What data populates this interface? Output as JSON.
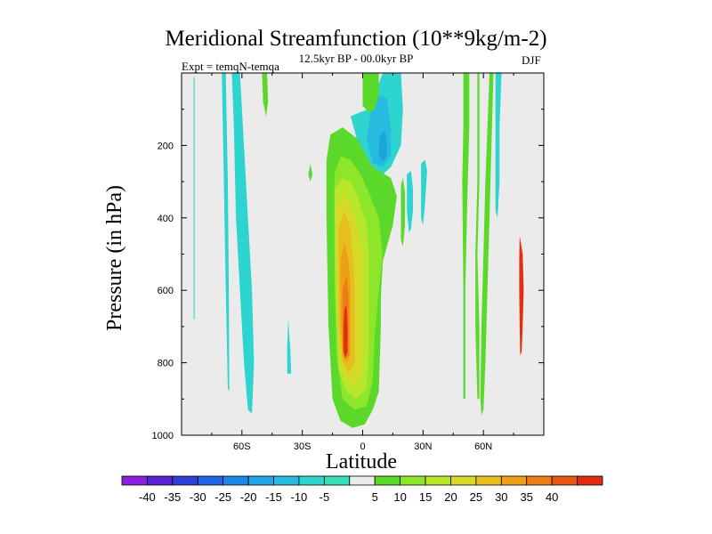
{
  "chart_data": {
    "type": "filled-contour",
    "title": "Meridional Streamfunction (10**9kg/m-2)",
    "subtitle": "12.5kyr BP - 00.0kyr BP",
    "experiment": "Expt = temqN-temqa",
    "season": "DJF",
    "xlabel": "Latitude",
    "ylabel": "Pressure (in hPa)",
    "xlim": [
      -90,
      90
    ],
    "ylim": [
      1000,
      0
    ],
    "x_ticks": [
      {
        "value": -60,
        "label": "60S"
      },
      {
        "value": -30,
        "label": "30S"
      },
      {
        "value": 0,
        "label": "0"
      },
      {
        "value": 30,
        "label": "30N"
      },
      {
        "value": 60,
        "label": "60N"
      }
    ],
    "y_ticks": [
      {
        "value": 200,
        "label": "200"
      },
      {
        "value": 400,
        "label": "400"
      },
      {
        "value": 600,
        "label": "600"
      },
      {
        "value": 800,
        "label": "800"
      },
      {
        "value": 1000,
        "label": "1000"
      }
    ],
    "colorbar": {
      "colors": [
        "#8a1fe0",
        "#5a21d6",
        "#2e40d6",
        "#1f63e6",
        "#1d87e8",
        "#22a5e8",
        "#26bbdf",
        "#2ed4cf",
        "#37deb6",
        "#ebebeb",
        "#5ad92a",
        "#8ee62a",
        "#b8e62b",
        "#d6d927",
        "#e8bd1f",
        "#eba018",
        "#eb7d14",
        "#e85713",
        "#e02b12"
      ],
      "labels": [
        "-40",
        "-35",
        "-30",
        "-25",
        "-20",
        "-15",
        "-10",
        "-5",
        "5",
        "10",
        "15",
        "20",
        "25",
        "30",
        "35",
        "40"
      ]
    },
    "regions": [
      {
        "name": "region-sh-south-band",
        "level": -5,
        "points": [
          [
            -83.5,
            12
          ],
          [
            -83.5,
            680
          ],
          [
            -84,
            680
          ],
          [
            -84,
            12
          ]
        ]
      },
      {
        "name": "region-sh-polar-tongue",
        "level": -5,
        "points": [
          [
            -70,
            0
          ],
          [
            -69,
            300
          ],
          [
            -68,
            600
          ],
          [
            -67,
            870
          ],
          [
            -66.3,
            880
          ],
          [
            -66.5,
            600
          ],
          [
            -67,
            300
          ],
          [
            -68,
            0
          ]
        ]
      },
      {
        "name": "region-sh-60s-col",
        "level": -5,
        "points": [
          [
            -65,
            0
          ],
          [
            -64,
            150
          ],
          [
            -63,
            400
          ],
          [
            -61,
            600
          ],
          [
            -59,
            800
          ],
          [
            -57,
            930
          ],
          [
            -55,
            940
          ],
          [
            -54,
            800
          ],
          [
            -55,
            600
          ],
          [
            -57,
            400
          ],
          [
            -59,
            200
          ],
          [
            -61,
            0
          ]
        ]
      },
      {
        "name": "region-sh-45s-green",
        "level": 5,
        "points": [
          [
            -50,
            0
          ],
          [
            -49.5,
            80
          ],
          [
            -48,
            120
          ],
          [
            -47,
            80
          ],
          [
            -47.5,
            0
          ]
        ]
      },
      {
        "name": "region-sh-35s-speck",
        "level": 5,
        "points": [
          [
            -27,
            280
          ],
          [
            -26,
            300
          ],
          [
            -25,
            280
          ],
          [
            -26,
            250
          ]
        ]
      },
      {
        "name": "region-sh-35s-pair",
        "level": -5,
        "points": [
          [
            -37,
            680
          ],
          [
            -36,
            760
          ],
          [
            -35.5,
            830
          ],
          [
            -37.5,
            830
          ],
          [
            -37.5,
            760
          ]
        ]
      },
      {
        "name": "region-upper-cyan",
        "level": -5,
        "points": [
          [
            10,
            0
          ],
          [
            19,
            0
          ],
          [
            20,
            100
          ],
          [
            19,
            200
          ],
          [
            14,
            260
          ],
          [
            8,
            290
          ],
          [
            3,
            285
          ],
          [
            0,
            240
          ],
          [
            -4,
            160
          ],
          [
            -6,
            120
          ],
          [
            -2,
            110
          ],
          [
            3,
            100
          ]
        ]
      },
      {
        "name": "region-upper-teal",
        "level": -10,
        "points": [
          [
            7,
            60
          ],
          [
            12,
            70
          ],
          [
            14,
            150
          ],
          [
            14,
            230
          ],
          [
            10,
            260
          ],
          [
            5,
            250
          ],
          [
            2,
            180
          ],
          [
            4,
            110
          ]
        ]
      },
      {
        "name": "region-upper-blue",
        "level": -15,
        "points": [
          [
            11,
            160
          ],
          [
            12,
            190
          ],
          [
            12,
            230
          ],
          [
            10,
            245
          ],
          [
            8,
            230
          ],
          [
            8,
            200
          ],
          [
            9,
            170
          ]
        ]
      },
      {
        "name": "region-top-green-cap",
        "level": 5,
        "points": [
          [
            0,
            0
          ],
          [
            8,
            0
          ],
          [
            8,
            60
          ],
          [
            6,
            100
          ],
          [
            3,
            110
          ],
          [
            0,
            90
          ]
        ]
      },
      {
        "name": "region-eq-green",
        "level": 5,
        "points": [
          [
            -18,
            240
          ],
          [
            -16,
            170
          ],
          [
            -10,
            150
          ],
          [
            -3,
            180
          ],
          [
            5,
            260
          ],
          [
            14,
            290
          ],
          [
            17,
            340
          ],
          [
            15,
            420
          ],
          [
            10,
            520
          ],
          [
            9,
            620
          ],
          [
            9,
            700
          ],
          [
            8,
            880
          ],
          [
            5,
            930
          ],
          [
            1,
            970
          ],
          [
            -5,
            980
          ],
          [
            -11,
            960
          ],
          [
            -15,
            900
          ],
          [
            -17,
            700
          ],
          [
            -18,
            400
          ]
        ]
      },
      {
        "name": "region-eq-lime",
        "level": 10,
        "points": [
          [
            -14,
            280
          ],
          [
            -11,
            230
          ],
          [
            -6,
            240
          ],
          [
            -1,
            280
          ],
          [
            3,
            330
          ],
          [
            8,
            400
          ],
          [
            10,
            500
          ],
          [
            8,
            600
          ],
          [
            6,
            720
          ],
          [
            5,
            850
          ],
          [
            2,
            920
          ],
          [
            -4,
            930
          ],
          [
            -10,
            900
          ],
          [
            -13,
            780
          ],
          [
            -14,
            560
          ]
        ]
      },
      {
        "name": "region-eq-yellowgreen",
        "level": 15,
        "points": [
          [
            -14,
            320
          ],
          [
            -10,
            290
          ],
          [
            -6,
            300
          ],
          [
            -2,
            350
          ],
          [
            2,
            420
          ],
          [
            3,
            500
          ],
          [
            3,
            620
          ],
          [
            3,
            760
          ],
          [
            2,
            870
          ],
          [
            -3,
            900
          ],
          [
            -8,
            880
          ],
          [
            -12,
            820
          ],
          [
            -13,
            650
          ],
          [
            -14,
            480
          ]
        ]
      },
      {
        "name": "region-eq-gold",
        "level": 20,
        "points": [
          [
            -13,
            380
          ],
          [
            -10,
            330
          ],
          [
            -6,
            360
          ],
          [
            -3,
            420
          ],
          [
            0,
            500
          ],
          [
            0,
            620
          ],
          [
            0,
            760
          ],
          [
            -1,
            840
          ],
          [
            -4,
            860
          ],
          [
            -9,
            840
          ],
          [
            -12,
            760
          ],
          [
            -13,
            580
          ]
        ]
      },
      {
        "name": "region-eq-amber",
        "level": 25,
        "points": [
          [
            -12,
            430
          ],
          [
            -9,
            380
          ],
          [
            -6,
            430
          ],
          [
            -5,
            500
          ],
          [
            -4,
            600
          ],
          [
            -4,
            720
          ],
          [
            -4,
            800
          ],
          [
            -7,
            830
          ],
          [
            -10,
            800
          ],
          [
            -12,
            700
          ],
          [
            -12,
            560
          ]
        ]
      },
      {
        "name": "region-eq-orange",
        "level": 30,
        "points": [
          [
            -11,
            520
          ],
          [
            -9,
            470
          ],
          [
            -7,
            520
          ],
          [
            -6,
            600
          ],
          [
            -6,
            700
          ],
          [
            -6,
            780
          ],
          [
            -8,
            800
          ],
          [
            -10,
            780
          ],
          [
            -11,
            680
          ]
        ]
      },
      {
        "name": "region-eq-dorange",
        "level": 35,
        "points": [
          [
            -10,
            600
          ],
          [
            -8,
            560
          ],
          [
            -7,
            620
          ],
          [
            -7,
            720
          ],
          [
            -7,
            780
          ],
          [
            -9,
            790
          ],
          [
            -10,
            760
          ],
          [
            -10,
            680
          ]
        ]
      },
      {
        "name": "region-eq-red",
        "level": 40,
        "points": [
          [
            -9,
            650
          ],
          [
            -8,
            640
          ],
          [
            -7.5,
            700
          ],
          [
            -7.5,
            770
          ],
          [
            -8.5,
            785
          ],
          [
            -9.5,
            770
          ],
          [
            -9.5,
            700
          ]
        ]
      },
      {
        "name": "region-eq-right-green",
        "level": 5,
        "points": [
          [
            9,
            460
          ],
          [
            11,
            440
          ],
          [
            12,
            460
          ],
          [
            11,
            480
          ],
          [
            10,
            500
          ]
        ]
      },
      {
        "name": "region-nh-25n-cyan",
        "level": -5,
        "points": [
          [
            22,
            280
          ],
          [
            24,
            270
          ],
          [
            25,
            320
          ],
          [
            25,
            380
          ],
          [
            24,
            430
          ],
          [
            23,
            440
          ],
          [
            22,
            380
          ]
        ]
      },
      {
        "name": "region-nh-30n-cyan",
        "level": -5,
        "points": [
          [
            29,
            250
          ],
          [
            31,
            240
          ],
          [
            32,
            270
          ],
          [
            31,
            360
          ],
          [
            30,
            420
          ],
          [
            29,
            400
          ],
          [
            29,
            320
          ]
        ]
      },
      {
        "name": "region-nh-30n-green",
        "level": 5,
        "points": [
          [
            19,
            310
          ],
          [
            20,
            290
          ],
          [
            21,
            330
          ],
          [
            21,
            420
          ],
          [
            20,
            480
          ],
          [
            19,
            460
          ],
          [
            19,
            380
          ]
        ]
      },
      {
        "name": "region-nh-50n-green",
        "level": 5,
        "points": [
          [
            50,
            0
          ],
          [
            53,
            0
          ],
          [
            53,
            150
          ],
          [
            52,
            350
          ],
          [
            51,
            600
          ],
          [
            51,
            900
          ],
          [
            50,
            900
          ],
          [
            50,
            600
          ],
          [
            49.5,
            300
          ],
          [
            50,
            150
          ]
        ]
      },
      {
        "name": "region-nh-55n-green",
        "level": 5,
        "points": [
          [
            57,
            0
          ],
          [
            58,
            0
          ],
          [
            58,
            300
          ],
          [
            57,
            500
          ],
          [
            58,
            700
          ],
          [
            58,
            900
          ],
          [
            57,
            900
          ],
          [
            56,
            700
          ],
          [
            56,
            500
          ],
          [
            57,
            300
          ]
        ]
      },
      {
        "name": "region-nh-60n-green",
        "level": 5,
        "points": [
          [
            63,
            0
          ],
          [
            65,
            0
          ],
          [
            64,
            200
          ],
          [
            63,
            400
          ],
          [
            62,
            600
          ],
          [
            61,
            800
          ],
          [
            60,
            930
          ],
          [
            59,
            945
          ],
          [
            58.5,
            900
          ],
          [
            59,
            700
          ],
          [
            60,
            500
          ],
          [
            61,
            300
          ],
          [
            62,
            150
          ]
        ]
      },
      {
        "name": "region-nh-60n-cyan",
        "level": -5,
        "points": [
          [
            66,
            0
          ],
          [
            69,
            0
          ],
          [
            68,
            150
          ],
          [
            68,
            300
          ],
          [
            67,
            400
          ],
          [
            66,
            380
          ],
          [
            66,
            200
          ]
        ]
      },
      {
        "name": "region-nh-75n-red",
        "level": 40,
        "points": [
          [
            78,
            450
          ],
          [
            79.5,
            500
          ],
          [
            80,
            600
          ],
          [
            79.5,
            700
          ],
          [
            79,
            770
          ],
          [
            78.3,
            780
          ],
          [
            78,
            700
          ],
          [
            77.8,
            600
          ],
          [
            77.8,
            520
          ]
        ]
      }
    ]
  }
}
